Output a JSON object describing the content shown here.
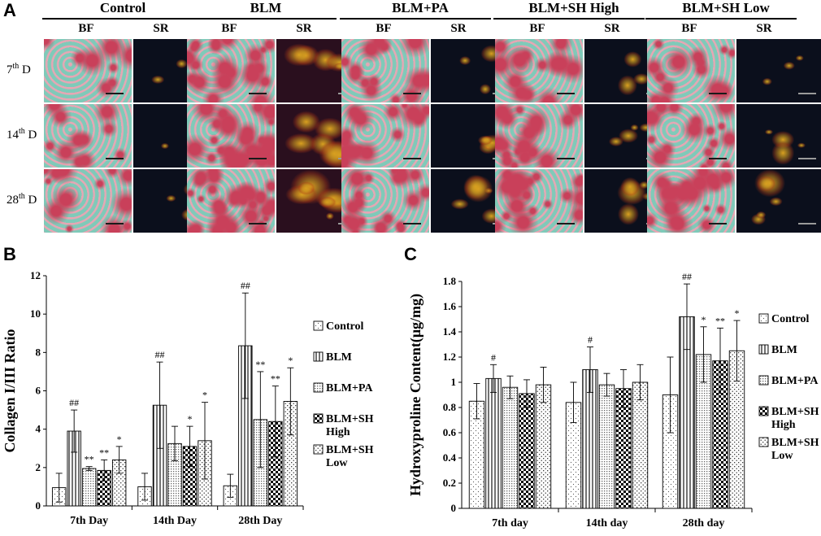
{
  "panel_letters": {
    "a": "A",
    "b": "B",
    "c": "C"
  },
  "groups": [
    "Control",
    "BLM",
    "BLM+PA",
    "BLM+SH High",
    "BLM+SH Low"
  ],
  "sub_columns": [
    "BF",
    "SR"
  ],
  "row_labels": [
    {
      "num": "7",
      "sup": "th",
      "suffix": " D"
    },
    {
      "num": "14",
      "sup": "th",
      "suffix": " D"
    },
    {
      "num": "28",
      "sup": "th",
      "suffix": " D"
    }
  ],
  "colors": {
    "bf_tissue": "#c9405a",
    "bf_bg": "#7fcab9",
    "sr_bg": "#0b0f1c",
    "sr_fiber": "#d8a020"
  },
  "chart_data": [
    {
      "id": "B",
      "type": "bar",
      "ylabel": "Collagen I/III  Ratio",
      "ylim": [
        0,
        12
      ],
      "yticks": [
        0,
        2,
        4,
        6,
        8,
        10,
        12
      ],
      "categories": [
        "7th Day",
        "14th Day",
        "28th Day"
      ],
      "legend": [
        {
          "label": "Control",
          "pattern": "dots-sparse"
        },
        {
          "label": "BLM",
          "pattern": "vertical-lines"
        },
        {
          "label": "BLM+PA",
          "pattern": "fine-dots"
        },
        {
          "label": "BLM+SH High",
          "pattern": "checker"
        },
        {
          "label": "BLM+SH Low",
          "pattern": "dots-dense"
        }
      ],
      "series": [
        {
          "name": "Control",
          "values": [
            0.95,
            1.0,
            1.05
          ],
          "err": [
            0.75,
            0.7,
            0.6
          ],
          "sig": [
            "",
            "",
            ""
          ]
        },
        {
          "name": "BLM",
          "values": [
            3.9,
            5.25,
            8.35
          ],
          "err": [
            1.1,
            2.25,
            2.75
          ],
          "sig": [
            "##",
            "##",
            "##"
          ]
        },
        {
          "name": "BLM+PA",
          "values": [
            1.95,
            3.25,
            4.5
          ],
          "err": [
            0.1,
            0.9,
            2.5
          ],
          "sig": [
            "**",
            "",
            "**"
          ]
        },
        {
          "name": "BLM+SH High",
          "values": [
            1.85,
            3.1,
            4.4
          ],
          "err": [
            0.55,
            1.05,
            1.85
          ],
          "sig": [
            "**",
            "*",
            "**"
          ]
        },
        {
          "name": "BLM+SH Low",
          "values": [
            2.4,
            3.4,
            5.45
          ],
          "err": [
            0.7,
            2.0,
            1.75
          ],
          "sig": [
            "*",
            "*",
            "*"
          ]
        }
      ]
    },
    {
      "id": "C",
      "type": "bar",
      "ylabel": "Hydroxyproline  Content(μg/mg)",
      "ylim": [
        0,
        1.8
      ],
      "yticks": [
        0,
        0.2,
        0.4,
        0.6,
        0.8,
        1,
        1.2,
        1.4,
        1.6,
        1.8
      ],
      "categories": [
        "7th day",
        "14th day",
        "28th day"
      ],
      "legend": [
        {
          "label": "Control",
          "pattern": "dots-sparse"
        },
        {
          "label": "BLM",
          "pattern": "vertical-lines"
        },
        {
          "label": "BLM+PA",
          "pattern": "fine-dots"
        },
        {
          "label": "BLM+SH High",
          "pattern": "checker"
        },
        {
          "label": "BLM+SH Low",
          "pattern": "dots-dense"
        }
      ],
      "series": [
        {
          "name": "Control",
          "values": [
            0.85,
            0.84,
            0.9
          ],
          "err": [
            0.14,
            0.16,
            0.3
          ],
          "sig": [
            "",
            "",
            ""
          ]
        },
        {
          "name": "BLM",
          "values": [
            1.03,
            1.1,
            1.52
          ],
          "err": [
            0.11,
            0.18,
            0.26
          ],
          "sig": [
            "#",
            "#",
            "##"
          ]
        },
        {
          "name": "BLM+PA",
          "values": [
            0.96,
            0.98,
            1.22
          ],
          "err": [
            0.09,
            0.09,
            0.22
          ],
          "sig": [
            "",
            "",
            "*"
          ]
        },
        {
          "name": "BLM+SH High",
          "values": [
            0.91,
            0.95,
            1.17
          ],
          "err": [
            0.11,
            0.15,
            0.26
          ],
          "sig": [
            "",
            "",
            "**"
          ]
        },
        {
          "name": "BLM+SH Low",
          "values": [
            0.98,
            1.0,
            1.25
          ],
          "err": [
            0.14,
            0.14,
            0.24
          ],
          "sig": [
            "",
            "",
            "*"
          ]
        }
      ]
    }
  ]
}
